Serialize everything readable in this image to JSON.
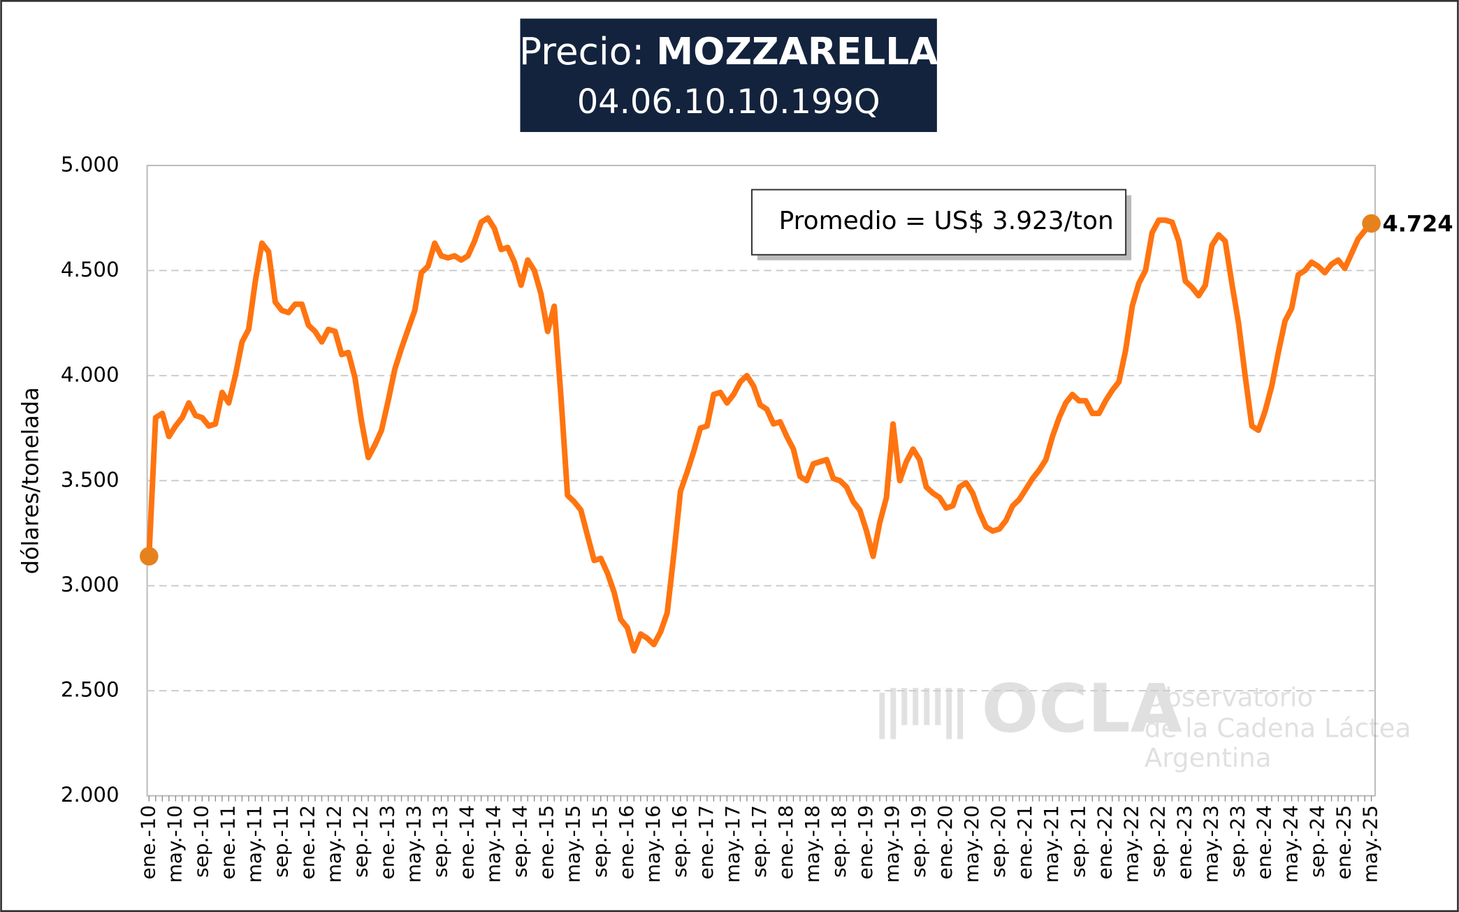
{
  "chart_data": {
    "type": "line",
    "title": {
      "prefix": "Precio:",
      "product": "MOZZARELLA"
    },
    "subtitle": "04.06.10.10.199Q",
    "y_label": "dólares/tonelada",
    "annotation": "Promedio = US$ 3.923/ton",
    "last_value_label": "4.724",
    "watermark": {
      "name": "OCLA",
      "line1": "Observatorio",
      "line2": "de la Cadena Láctea",
      "line3": "Argentina"
    },
    "ylim": [
      2000,
      5000
    ],
    "yticks": [
      {
        "value": 2000,
        "label": "2.000"
      },
      {
        "value": 2500,
        "label": "2.500"
      },
      {
        "value": 3000,
        "label": "3.000"
      },
      {
        "value": 3500,
        "label": "3.500"
      },
      {
        "value": 4000,
        "label": "4.000"
      },
      {
        "value": 4500,
        "label": "4.500"
      },
      {
        "value": 5000,
        "label": "5.000"
      }
    ],
    "grid": true,
    "categories": [
      "ene.-10",
      null,
      null,
      null,
      "may.-10",
      null,
      null,
      null,
      "sep.-10",
      null,
      null,
      null,
      "ene.-11",
      null,
      null,
      null,
      "may.-11",
      null,
      null,
      null,
      "sep.-11",
      null,
      null,
      null,
      "ene.-12",
      null,
      null,
      null,
      "may.-12",
      null,
      null,
      null,
      "sep.-12",
      null,
      null,
      null,
      "ene.-13",
      null,
      null,
      null,
      "may.-13",
      null,
      null,
      null,
      "sep.-13",
      null,
      null,
      null,
      "ene.-14",
      null,
      null,
      null,
      "may.-14",
      null,
      null,
      null,
      "sep.-14",
      null,
      null,
      null,
      "ene.-15",
      null,
      null,
      null,
      "may.-15",
      null,
      null,
      null,
      "sep.-15",
      null,
      null,
      null,
      "ene.-16",
      null,
      null,
      null,
      "may.-16",
      null,
      null,
      null,
      "sep.-16",
      null,
      null,
      null,
      "ene.-17",
      null,
      null,
      null,
      "may.-17",
      null,
      null,
      null,
      "sep.-17",
      null,
      null,
      null,
      "ene.-18",
      null,
      null,
      null,
      "may.-18",
      null,
      null,
      null,
      "sep.-18",
      null,
      null,
      null,
      "ene.-19",
      null,
      null,
      null,
      "may.-19",
      null,
      null,
      null,
      "sep.-19",
      null,
      null,
      null,
      "ene.-20",
      null,
      null,
      null,
      "may.-20",
      null,
      null,
      null,
      "sep.-20",
      null,
      null,
      null,
      "ene.-21",
      null,
      null,
      null,
      "may.-21",
      null,
      null,
      null,
      "sep.-21",
      null,
      null,
      null,
      "ene.-22",
      null,
      null,
      null,
      "may.-22",
      null,
      null,
      null,
      "sep.-22",
      null,
      null,
      null,
      "ene.-23",
      null,
      null,
      null,
      "may.-23",
      null,
      null,
      null,
      "sep.-23",
      null,
      null,
      null,
      "ene.-24",
      null,
      null,
      null,
      "may.-24",
      null,
      null,
      null,
      "sep.-24",
      null,
      null,
      null,
      "ene.-25",
      null,
      null,
      null,
      "may.-25"
    ],
    "series": [
      {
        "name": "MOZZARELLA",
        "color": "#ff7410",
        "values": [
          3140,
          3800,
          3820,
          3710,
          3760,
          3800,
          3870,
          3810,
          3800,
          3760,
          3770,
          3920,
          3870,
          4000,
          4160,
          4220,
          4450,
          4630,
          4590,
          4350,
          4310,
          4300,
          4340,
          4340,
          4240,
          4210,
          4160,
          4220,
          4210,
          4100,
          4110,
          3990,
          3780,
          3610,
          3670,
          3740,
          3880,
          4030,
          4130,
          4220,
          4310,
          4490,
          4520,
          4630,
          4570,
          4560,
          4570,
          4550,
          4570,
          4640,
          4730,
          4750,
          4700,
          4600,
          4610,
          4540,
          4430,
          4550,
          4500,
          4390,
          4210,
          4330,
          3900,
          3430,
          3400,
          3360,
          3240,
          3120,
          3130,
          3060,
          2970,
          2840,
          2800,
          2690,
          2770,
          2750,
          2720,
          2780,
          2870,
          3150,
          3450,
          3540,
          3640,
          3750,
          3760,
          3910,
          3920,
          3870,
          3910,
          3970,
          4000,
          3950,
          3860,
          3840,
          3770,
          3780,
          3710,
          3650,
          3520,
          3500,
          3580,
          3590,
          3600,
          3510,
          3500,
          3470,
          3400,
          3360,
          3260,
          3140,
          3300,
          3420,
          3770,
          3500,
          3590,
          3650,
          3600,
          3470,
          3440,
          3420,
          3370,
          3380,
          3470,
          3490,
          3440,
          3350,
          3280,
          3260,
          3270,
          3310,
          3380,
          3410,
          3460,
          3510,
          3550,
          3600,
          3710,
          3800,
          3870,
          3910,
          3880,
          3880,
          3820,
          3820,
          3880,
          3930,
          3970,
          4120,
          4330,
          4440,
          4500,
          4680,
          4740,
          4740,
          4730,
          4640,
          4450,
          4420,
          4380,
          4430,
          4620,
          4670,
          4640,
          4440,
          4250,
          4000,
          3760,
          3740,
          3830,
          3950,
          4110,
          4260,
          4320,
          4480,
          4500,
          4540,
          4520,
          4490,
          4530,
          4550,
          4510,
          4580,
          4650,
          4690,
          4724
        ]
      }
    ]
  }
}
